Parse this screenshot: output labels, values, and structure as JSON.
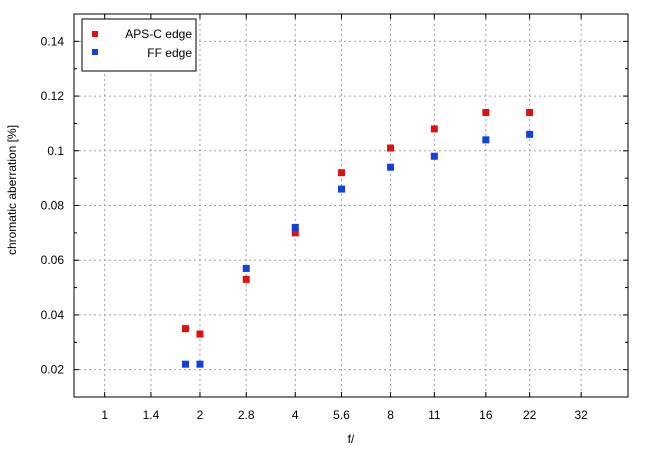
{
  "chart_data": {
    "type": "scatter",
    "title": "",
    "xlabel": "f/",
    "ylabel": "chromatic aberration [%]",
    "x_scale": "log2",
    "x_ticks": [
      {
        "label": "1",
        "value": 1
      },
      {
        "label": "1.4",
        "value": 1.4
      },
      {
        "label": "2",
        "value": 2
      },
      {
        "label": "2.8",
        "value": 2.8
      },
      {
        "label": "4",
        "value": 4
      },
      {
        "label": "5.6",
        "value": 5.6
      },
      {
        "label": "8",
        "value": 8
      },
      {
        "label": "11",
        "value": 11
      },
      {
        "label": "16",
        "value": 16
      },
      {
        "label": "22",
        "value": 22
      },
      {
        "label": "32",
        "value": 32
      }
    ],
    "xlim": [
      0.8,
      45
    ],
    "ylim": [
      0.01,
      0.15
    ],
    "y_ticks": [
      "0.02",
      "0.04",
      "0.06",
      "0.08",
      "0.1",
      "0.12",
      "0.14"
    ],
    "grid": true,
    "legend_position": "top-left",
    "series": [
      {
        "name": "APS-C edge",
        "color": "#e01010",
        "points": [
          {
            "x": 1.8,
            "y": 0.035
          },
          {
            "x": 2,
            "y": 0.033
          },
          {
            "x": 2.8,
            "y": 0.053
          },
          {
            "x": 4,
            "y": 0.07
          },
          {
            "x": 5.6,
            "y": 0.092
          },
          {
            "x": 8,
            "y": 0.101
          },
          {
            "x": 11,
            "y": 0.108
          },
          {
            "x": 16,
            "y": 0.114
          },
          {
            "x": 22,
            "y": 0.114
          }
        ]
      },
      {
        "name": "FF edge",
        "color": "#1040e0",
        "points": [
          {
            "x": 1.8,
            "y": 0.022
          },
          {
            "x": 2,
            "y": 0.022
          },
          {
            "x": 2.8,
            "y": 0.057
          },
          {
            "x": 4,
            "y": 0.072
          },
          {
            "x": 5.6,
            "y": 0.086
          },
          {
            "x": 8,
            "y": 0.094
          },
          {
            "x": 11,
            "y": 0.098
          },
          {
            "x": 16,
            "y": 0.104
          },
          {
            "x": 22,
            "y": 0.106
          }
        ]
      }
    ]
  }
}
